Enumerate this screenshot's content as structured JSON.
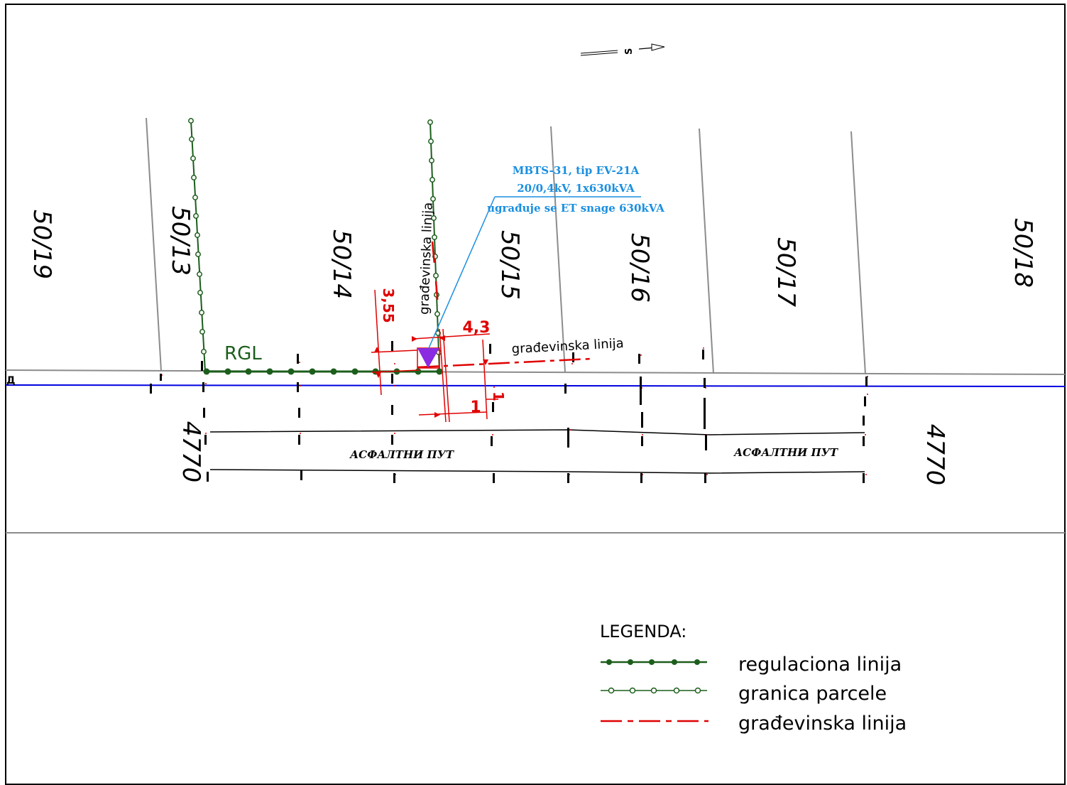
{
  "parcels": [
    "50/19",
    "50/13",
    "50/14",
    "50/15",
    "50/16",
    "50/17",
    "50/18"
  ],
  "road_parcel": {
    "left": "4770",
    "right": "4770"
  },
  "road_name": {
    "left": "АСФАЛТНИ ПУТ",
    "right": "АСФАЛТНИ ПУТ"
  },
  "road_edge_letter": "Д",
  "north_marker": "S",
  "rgl_label": "RGL",
  "building_line_label_vertical": "građevinska linija",
  "building_line_label_horizontal": "građevinska linija",
  "dimensions": {
    "d1": "3,55",
    "d2": "4,3",
    "d3": "1",
    "d4": "1"
  },
  "substation_note": {
    "line1": "MBTS-31, tip EV-21A",
    "line2": "20/0,4kV, 1x630kVA",
    "line3": "ugrađuje se ET snage 630kVA"
  },
  "legend": {
    "title": "LEGENDA:",
    "items": [
      {
        "label": "regulaciona linija",
        "symbol": "filled-dot-line",
        "color": "#1c5e1c"
      },
      {
        "label": "granica parcele",
        "symbol": "hollow-dot-line",
        "color": "#1c5e1c"
      },
      {
        "label": "građevinska linija",
        "symbol": "dash-line",
        "color": "#e00000"
      }
    ]
  },
  "colors": {
    "regulation_line": "#1c5e1c",
    "building_line": "#e00000",
    "road_axis": "#0000e0",
    "substation": "#8a2be2",
    "note": "#1a8fe0",
    "parcel_border": "#8c8c8c"
  }
}
